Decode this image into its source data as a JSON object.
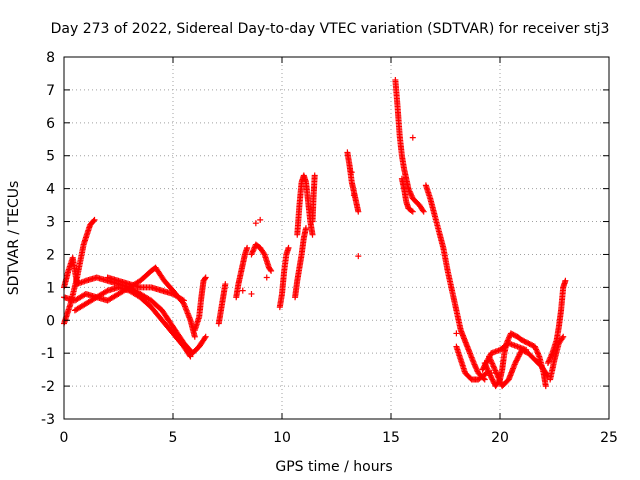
{
  "chart_data": {
    "type": "scatter",
    "title": "Day 273 of 2022, Sidereal Day-to-day VTEC variation (SDTVAR) for receiver stj3",
    "xlabel": "GPS time / hours",
    "ylabel": "SDTVAR / TECUs",
    "xlim": [
      0,
      25
    ],
    "ylim": [
      -3,
      8
    ],
    "xticks": [
      "0",
      "5",
      "10",
      "15",
      "20",
      "25"
    ],
    "yticks": [
      "-3",
      "-2",
      "-1",
      "0",
      "1",
      "2",
      "3",
      "4",
      "5",
      "6",
      "7",
      "8"
    ],
    "grid": true,
    "marker": "+",
    "color": "#ff0000",
    "series": [
      {
        "name": "arc1",
        "points": [
          [
            0,
            -0.1
          ],
          [
            0.3,
            0.5
          ],
          [
            0.6,
            1.3
          ],
          [
            0.9,
            2.3
          ],
          [
            1.2,
            2.9
          ],
          [
            1.4,
            3.05
          ]
        ]
      },
      {
        "name": "arc2",
        "points": [
          [
            0.0,
            1.0
          ],
          [
            0.2,
            1.5
          ],
          [
            0.4,
            1.9
          ],
          [
            0.6,
            1.1
          ],
          [
            1.0,
            1.2
          ],
          [
            1.5,
            1.3
          ],
          [
            2.0,
            1.2
          ],
          [
            2.5,
            1.1
          ],
          [
            3.0,
            1.0
          ],
          [
            3.5,
            0.8
          ],
          [
            4.0,
            0.6
          ],
          [
            4.5,
            0.3
          ],
          [
            5.0,
            -0.2
          ],
          [
            5.5,
            -0.7
          ],
          [
            5.9,
            -1.0
          ],
          [
            6.2,
            -0.8
          ],
          [
            6.5,
            -0.5
          ]
        ]
      },
      {
        "name": "arc3",
        "points": [
          [
            0.0,
            0.7
          ],
          [
            0.5,
            0.6
          ],
          [
            1.0,
            0.8
          ],
          [
            1.5,
            0.7
          ],
          [
            2.0,
            0.6
          ],
          [
            2.5,
            0.8
          ],
          [
            3.0,
            1.0
          ],
          [
            3.5,
            1.2
          ],
          [
            4.0,
            1.5
          ],
          [
            4.2,
            1.6
          ],
          [
            4.6,
            1.2
          ],
          [
            5.0,
            0.9
          ],
          [
            5.5,
            0.5
          ],
          [
            5.8,
            0.0
          ],
          [
            6.0,
            -0.5
          ]
        ]
      },
      {
        "name": "arc4",
        "points": [
          [
            0.5,
            0.3
          ],
          [
            1.0,
            0.5
          ],
          [
            1.5,
            0.7
          ],
          [
            2.0,
            0.9
          ],
          [
            2.5,
            1.0
          ],
          [
            3.0,
            0.9
          ],
          [
            3.5,
            0.7
          ],
          [
            4.0,
            0.4
          ],
          [
            4.5,
            0.0
          ],
          [
            5.0,
            -0.4
          ],
          [
            5.5,
            -0.8
          ],
          [
            5.8,
            -1.1
          ]
        ]
      },
      {
        "name": "arc5",
        "points": [
          [
            2.0,
            1.3
          ],
          [
            2.5,
            1.2
          ],
          [
            3.0,
            1.1
          ],
          [
            3.5,
            1.0
          ],
          [
            4.0,
            1.0
          ],
          [
            4.5,
            0.9
          ],
          [
            5.0,
            0.8
          ],
          [
            5.5,
            0.6
          ]
        ]
      },
      {
        "name": "arc6",
        "points": [
          [
            6.0,
            -0.3
          ],
          [
            6.2,
            0.1
          ],
          [
            6.3,
            0.7
          ],
          [
            6.4,
            1.2
          ],
          [
            6.5,
            1.3
          ]
        ]
      },
      {
        "name": "arc7",
        "points": [
          [
            7.1,
            -0.1
          ],
          [
            7.2,
            0.3
          ],
          [
            7.3,
            0.7
          ],
          [
            7.4,
            1.1
          ]
        ]
      },
      {
        "name": "arc8",
        "points": [
          [
            7.9,
            0.7
          ],
          [
            8.0,
            1.1
          ],
          [
            8.1,
            1.4
          ],
          [
            8.2,
            1.7
          ],
          [
            8.3,
            2.0
          ],
          [
            8.4,
            2.2
          ]
        ]
      },
      {
        "name": "arc9",
        "points": [
          [
            8.6,
            2.0
          ],
          [
            8.8,
            2.3
          ],
          [
            9.0,
            2.2
          ],
          [
            9.2,
            2.0
          ],
          [
            9.4,
            1.6
          ],
          [
            9.5,
            1.5
          ]
        ]
      },
      {
        "name": "arc10",
        "points": [
          [
            9.9,
            0.4
          ],
          [
            10.0,
            0.8
          ],
          [
            10.1,
            1.5
          ],
          [
            10.2,
            2.0
          ],
          [
            10.3,
            2.2
          ]
        ]
      },
      {
        "name": "arc11",
        "points": [
          [
            10.6,
            0.7
          ],
          [
            10.7,
            1.2
          ],
          [
            10.8,
            1.6
          ],
          [
            10.9,
            2.0
          ],
          [
            11.0,
            2.5
          ],
          [
            11.1,
            2.8
          ]
        ]
      },
      {
        "name": "arc12",
        "points": [
          [
            10.7,
            2.6
          ],
          [
            10.8,
            3.5
          ],
          [
            10.9,
            4.2
          ],
          [
            11.0,
            4.4
          ],
          [
            11.1,
            4.2
          ],
          [
            11.2,
            3.6
          ],
          [
            11.3,
            3.0
          ],
          [
            11.4,
            2.6
          ]
        ]
      },
      {
        "name": "arc13",
        "points": [
          [
            11.4,
            3.0
          ],
          [
            11.45,
            3.8
          ],
          [
            11.5,
            4.4
          ]
        ]
      },
      {
        "name": "arc14",
        "points": [
          [
            13.0,
            5.1
          ],
          [
            13.1,
            4.7
          ],
          [
            13.2,
            4.2
          ],
          [
            13.3,
            3.9
          ],
          [
            13.4,
            3.6
          ],
          [
            13.5,
            3.3
          ]
        ]
      },
      {
        "name": "arc15",
        "points": [
          [
            15.2,
            7.3
          ],
          [
            15.3,
            6.5
          ],
          [
            15.4,
            5.6
          ],
          [
            15.5,
            5.0
          ],
          [
            15.6,
            4.6
          ],
          [
            15.7,
            4.3
          ],
          [
            15.8,
            4.0
          ],
          [
            16.0,
            3.7
          ],
          [
            16.3,
            3.5
          ],
          [
            16.5,
            3.3
          ]
        ]
      },
      {
        "name": "arc16",
        "points": [
          [
            15.5,
            4.3
          ],
          [
            15.6,
            4.0
          ],
          [
            15.7,
            3.6
          ],
          [
            15.8,
            3.4
          ],
          [
            16.0,
            3.3
          ]
        ]
      },
      {
        "name": "arc17",
        "points": [
          [
            16.6,
            4.1
          ],
          [
            16.8,
            3.7
          ],
          [
            17.0,
            3.2
          ],
          [
            17.2,
            2.7
          ],
          [
            17.4,
            2.2
          ],
          [
            17.6,
            1.5
          ],
          [
            17.8,
            0.9
          ],
          [
            18.0,
            0.3
          ],
          [
            18.2,
            -0.3
          ],
          [
            18.5,
            -0.8
          ],
          [
            18.8,
            -1.3
          ],
          [
            19.0,
            -1.6
          ],
          [
            19.3,
            -1.8
          ]
        ]
      },
      {
        "name": "arc18",
        "points": [
          [
            18.0,
            -0.8
          ],
          [
            18.2,
            -1.2
          ],
          [
            18.4,
            -1.6
          ],
          [
            18.7,
            -1.8
          ],
          [
            19.0,
            -1.8
          ],
          [
            19.4,
            -1.6
          ]
        ]
      },
      {
        "name": "arc19",
        "points": [
          [
            19.3,
            -1.3
          ],
          [
            19.5,
            -1.6
          ],
          [
            19.8,
            -2.0
          ],
          [
            20.0,
            -1.8
          ],
          [
            20.1,
            -1.5
          ],
          [
            20.2,
            -1.0
          ],
          [
            20.3,
            -0.7
          ],
          [
            20.5,
            -0.4
          ],
          [
            20.8,
            -0.5
          ],
          [
            21.0,
            -0.6
          ],
          [
            21.3,
            -0.7
          ],
          [
            21.6,
            -0.8
          ],
          [
            21.8,
            -1.1
          ],
          [
            22.0,
            -1.6
          ],
          [
            22.1,
            -2.0
          ]
        ]
      },
      {
        "name": "arc20",
        "points": [
          [
            19.5,
            -1.1
          ],
          [
            19.7,
            -1.4
          ],
          [
            19.9,
            -1.7
          ],
          [
            20.1,
            -2.0
          ],
          [
            20.4,
            -1.8
          ],
          [
            20.7,
            -1.3
          ],
          [
            21.0,
            -0.9
          ],
          [
            21.3,
            -1.0
          ],
          [
            21.6,
            -1.2
          ],
          [
            21.9,
            -1.4
          ],
          [
            22.2,
            -1.7
          ]
        ]
      },
      {
        "name": "arc21",
        "points": [
          [
            19.2,
            -1.5
          ],
          [
            19.6,
            -1.0
          ],
          [
            20.0,
            -0.9
          ],
          [
            20.4,
            -0.7
          ],
          [
            20.8,
            -0.8
          ],
          [
            21.2,
            -0.9
          ]
        ]
      },
      {
        "name": "arc22",
        "points": [
          [
            22.2,
            -1.3
          ],
          [
            22.4,
            -1.0
          ],
          [
            22.6,
            -0.6
          ],
          [
            22.7,
            -0.2
          ],
          [
            22.8,
            0.3
          ],
          [
            22.9,
            1.0
          ],
          [
            23.0,
            1.2
          ]
        ]
      },
      {
        "name": "arc23",
        "points": [
          [
            22.3,
            -1.8
          ],
          [
            22.5,
            -1.2
          ],
          [
            22.7,
            -0.7
          ],
          [
            22.9,
            -0.5
          ]
        ]
      }
    ],
    "isolated_points": [
      [
        8.8,
        2.95
      ],
      [
        9.0,
        3.05
      ],
      [
        8.2,
        0.9
      ],
      [
        8.6,
        0.8
      ],
      [
        9.3,
        1.3
      ],
      [
        13.5,
        1.95
      ],
      [
        13.2,
        4.5
      ],
      [
        13.3,
        3.8
      ],
      [
        16.0,
        5.55
      ],
      [
        18.0,
        -0.4
      ],
      [
        19.6,
        -1.6
      ]
    ]
  }
}
